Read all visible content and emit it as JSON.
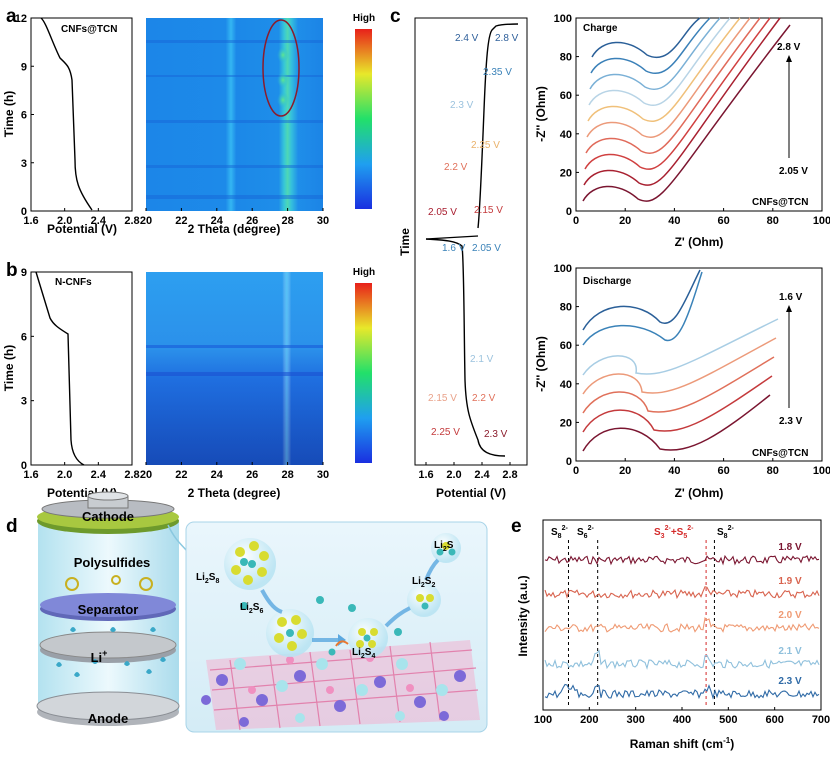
{
  "panels": {
    "a": {
      "label": "a",
      "sample": "CNFs@TCN",
      "potential_axis": {
        "label": "Potential (V)",
        "ticks": [
          "1.6",
          "2.0",
          "2.4",
          "2.8"
        ]
      },
      "time_axis": {
        "label": "Time (h)",
        "ticks": [
          "0",
          "3",
          "6",
          "9",
          "12"
        ]
      },
      "theta_axis": {
        "label": "2 Theta (degree)",
        "ticks": [
          "20",
          "22",
          "24",
          "26",
          "28",
          "30"
        ]
      },
      "colorbar_label": "High"
    },
    "b": {
      "label": "b",
      "sample": "N-CNFs",
      "potential_axis": {
        "label": "Potential (V)",
        "ticks": [
          "1.6",
          "2.0",
          "2.4",
          "2.8"
        ]
      },
      "time_axis": {
        "label": "Time (h)",
        "ticks": [
          "0",
          "3",
          "6",
          "9"
        ]
      },
      "theta_axis": {
        "label": "2 Theta (degree)",
        "ticks": [
          "20",
          "22",
          "24",
          "26",
          "28",
          "30"
        ]
      },
      "colorbar_label": "High"
    },
    "c": {
      "label": "c",
      "profile": {
        "ylabel": "Time",
        "xlabel": "Potential (V)",
        "xticks": [
          "1.6",
          "2.0",
          "2.4",
          "2.8"
        ],
        "charge_points": [
          {
            "v": "2.4 V",
            "c": "#2e5f9a"
          },
          {
            "v": "2.8 V",
            "c": "#2e5f9a"
          },
          {
            "v": "2.35 V",
            "c": "#3a82b8"
          },
          {
            "v": "2.3 V",
            "c": "#9cc3de"
          },
          {
            "v": "2.25 V",
            "c": "#e9b16a"
          },
          {
            "v": "2.2 V",
            "c": "#e0705a"
          },
          {
            "v": "2.05 V",
            "c": "#a81c2e"
          },
          {
            "v": "2.15 V",
            "c": "#c43a3c"
          }
        ],
        "discharge_points": [
          {
            "v": "1.6 V",
            "c": "#3a82b8"
          },
          {
            "v": "2.05 V",
            "c": "#3a82b8"
          },
          {
            "v": "2.1 V",
            "c": "#9cc3de"
          },
          {
            "v": "2.15 V",
            "c": "#e9a28a"
          },
          {
            "v": "2.2 V",
            "c": "#e0705a"
          },
          {
            "v": "2.25 V",
            "c": "#c43a3c"
          },
          {
            "v": "2.3 V",
            "c": "#8a1a2a"
          }
        ]
      },
      "charge": {
        "title": "Charge",
        "sample": "CNFs@TCN",
        "top_label": "2.8 V",
        "bottom_label": "2.05 V",
        "xlabel": "Z' (Ohm)",
        "ylabel": "-Z'' (Ohm)",
        "xticks": [
          "0",
          "20",
          "40",
          "60",
          "80",
          "100"
        ],
        "yticks": [
          "0",
          "20",
          "40",
          "60",
          "80",
          "100"
        ]
      },
      "discharge": {
        "title": "Discharge",
        "sample": "CNFs@TCN",
        "top_label": "1.6 V",
        "bottom_label": "2.3 V",
        "xlabel": "Z' (Ohm)",
        "ylabel": "-Z'' (Ohm)",
        "xticks": [
          "0",
          "20",
          "40",
          "60",
          "80",
          "100"
        ],
        "yticks": [
          "0",
          "20",
          "40",
          "60",
          "80",
          "100"
        ]
      }
    },
    "d": {
      "label": "d",
      "battery": {
        "cathode": "Cathode",
        "polysulfides": "Polysulfides",
        "separator": "Separator",
        "li": "Li",
        "li_sup": "+",
        "anode": "Anode"
      },
      "species": [
        {
          "base": "Li",
          "s1": "2",
          "mid": "S",
          "s2": "8"
        },
        {
          "base": "Li",
          "s1": "2",
          "mid": "S",
          "s2": "6"
        },
        {
          "base": "Li",
          "s1": "2",
          "mid": "S",
          "s2": "4"
        },
        {
          "base": "Li",
          "s1": "2",
          "mid": "S",
          "s2": "2"
        },
        {
          "base": "Li",
          "s1": "2",
          "mid": "S",
          "s2": ""
        }
      ]
    },
    "e": {
      "label": "e",
      "xlabel": "Raman shift (cm",
      "xlabel_sup": "-1",
      "xlabel_end": ")",
      "ylabel": "Intensity (a.u.)",
      "xticks": [
        "100",
        "200",
        "300",
        "400",
        "500",
        "600",
        "700"
      ],
      "peaks": [
        {
          "base": "S",
          "sub": "8",
          "sup": "2-",
          "c": "#000000"
        },
        {
          "base": "S",
          "sub": "6",
          "sup": "2-",
          "c": "#000000"
        },
        {
          "base": "S",
          "sub": "3",
          "sup": "2-",
          "mid": "+S",
          "sub2": "5",
          "sup2": "2-",
          "c": "#d42a2a"
        },
        {
          "base": "S",
          "sub": "8",
          "sup": "2-",
          "c": "#000000"
        }
      ],
      "traces": [
        {
          "label": "1.8 V",
          "c": "#7a1530"
        },
        {
          "label": "1.9 V",
          "c": "#d8634e"
        },
        {
          "label": "2.0 V",
          "c": "#ef9a73"
        },
        {
          "label": "2.1 V",
          "c": "#8fc0dc"
        },
        {
          "label": "2.3 V",
          "c": "#2f6aa6"
        }
      ]
    }
  }
}
